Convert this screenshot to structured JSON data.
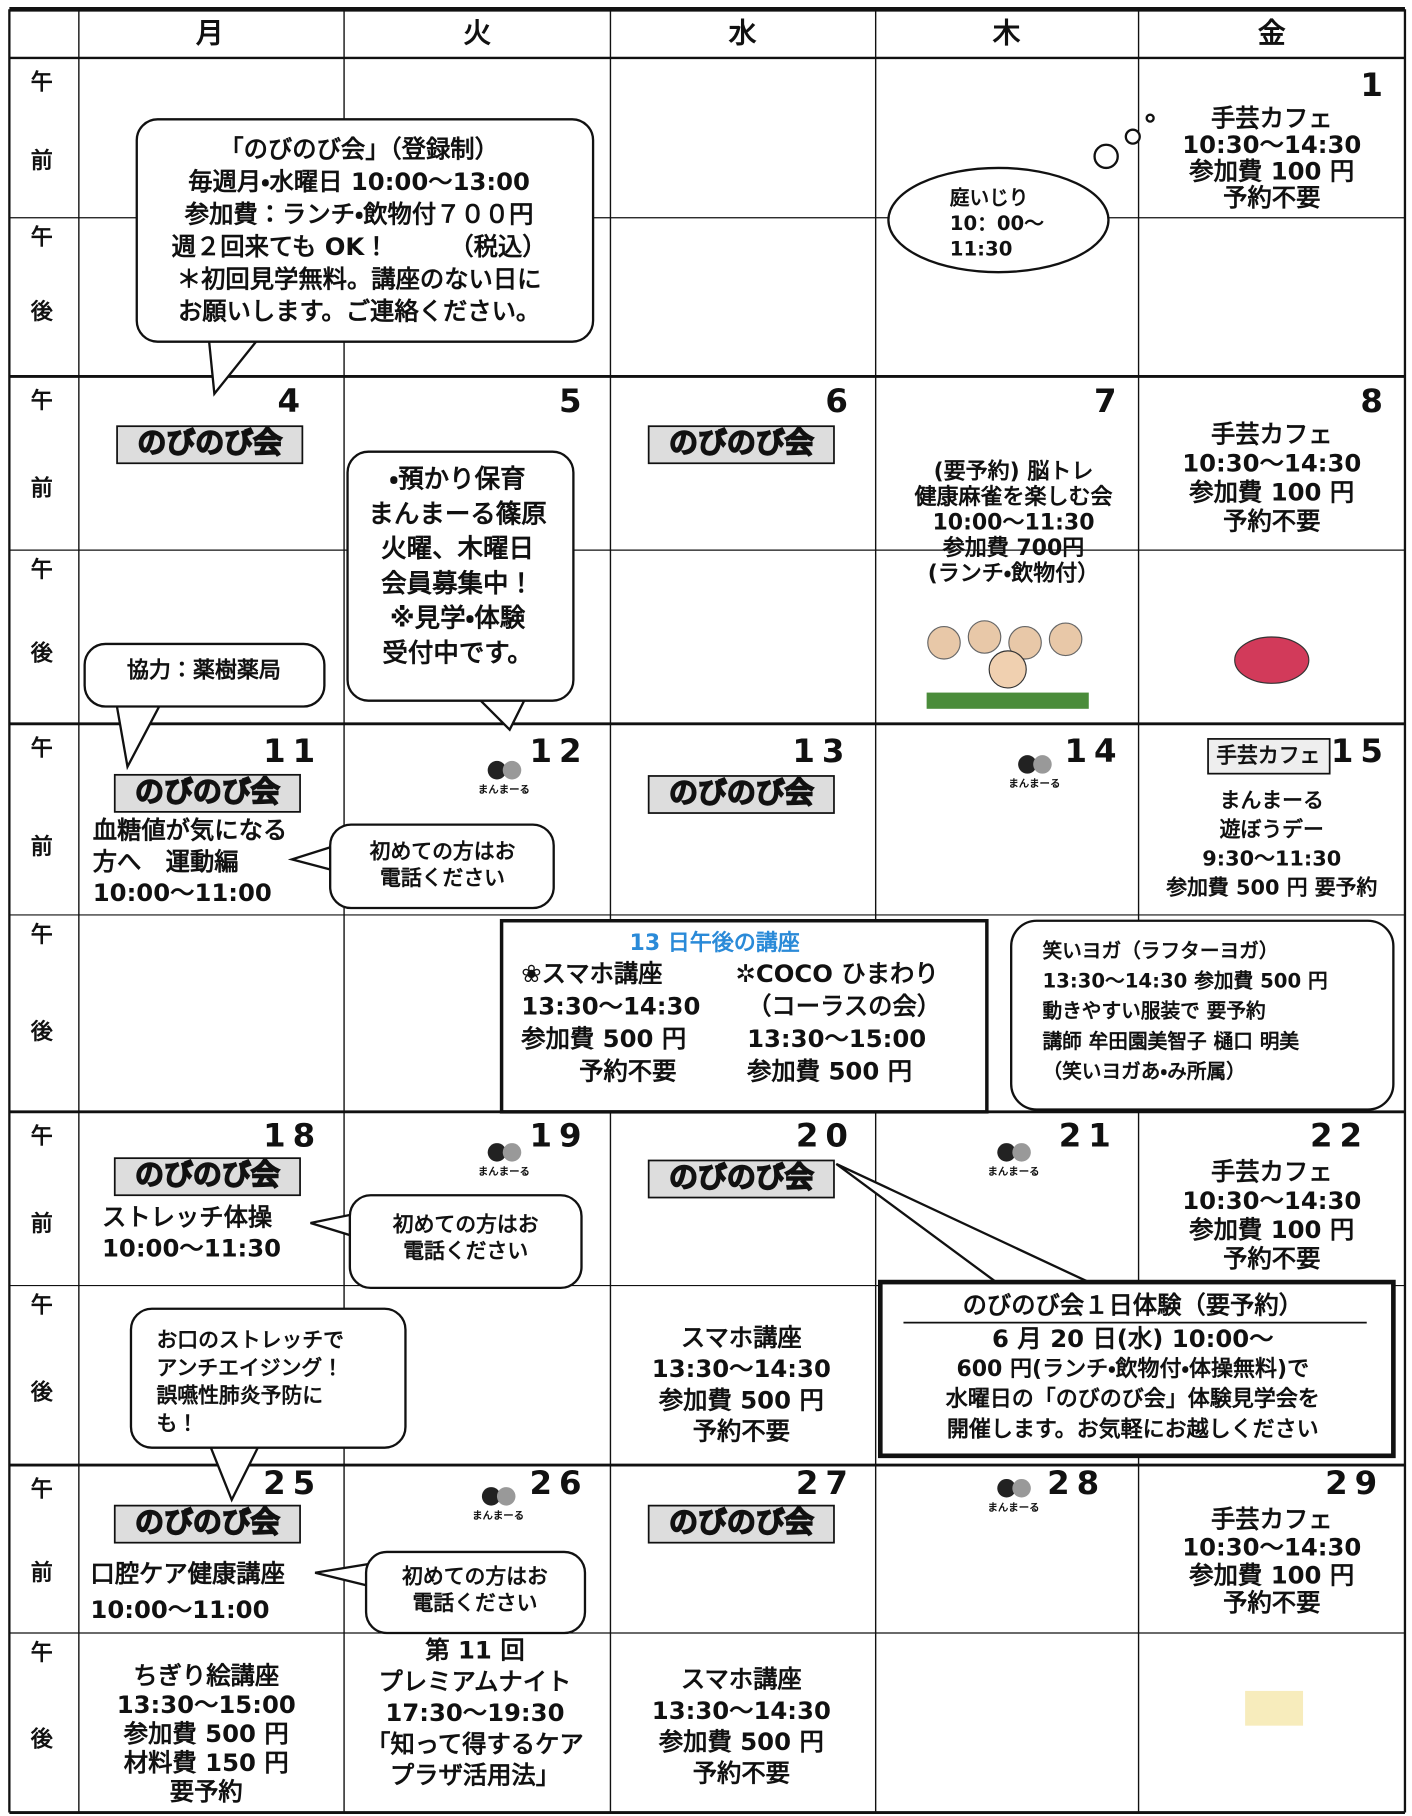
{
  "days": [
    "月",
    "火",
    "水",
    "木",
    "金"
  ],
  "am_label": [
    "午",
    "前"
  ],
  "pm_label": [
    "午",
    "後"
  ],
  "dates": [
    "1",
    "4",
    "5",
    "6",
    "7",
    "8",
    "11",
    "12",
    "13",
    "14",
    "15",
    "18",
    "19",
    "20",
    "21",
    "22",
    "25",
    "26",
    "27",
    "28",
    "29"
  ],
  "badge": "のびのび会",
  "manmaru": "まんまーる",
  "cafe_tag": "手芸カフェ",
  "texts": [
    {
      "lines": [
        "「のびのび会」（登録制）",
        "毎週月・水曜日 10:00～13:00",
        "参加費：ランチ・飲物付７００円",
        "週２回来ても OK！　　　（税込）",
        "＊初回見学無料。講座のない日に",
        "お願いします。ご連絡ください。"
      ]
    },
    {
      "lines": [
        "庭いじり",
        "10：00～",
        "11:30"
      ]
    },
    {
      "lines": [
        "手芸カフェ",
        "10:30～14:30",
        "参加費 100 円",
        "予約不要"
      ]
    },
    {
      "lines": [
        "・預かり保育",
        "まんまーる篠原",
        "火曜、木曜日",
        "会員募集中！",
        "※見学・体験",
        "受付中です。"
      ]
    },
    {
      "lines": [
        "協力：薬樹薬局"
      ]
    },
    {
      "lines": [
        "(要予約) 脳トレ",
        "健康麻雀を楽しむ会",
        "10:00～11:30",
        "参加費 700円",
        "(ランチ・飲物付）"
      ]
    },
    {
      "lines": [
        "手芸カフェ",
        "10:30～14:30",
        "参加費 100 円",
        "予約不要"
      ]
    },
    {
      "lines": [
        "血糖値が気になる",
        "方へ　運動編",
        "10:00～11:00"
      ]
    },
    {
      "lines": [
        "初めての方はお",
        "電話ください"
      ]
    },
    {
      "lines": [
        "まんまーる",
        "遊ぼうデー",
        "9:30～11:30",
        "参加費 500 円 要予約"
      ]
    },
    {
      "lines": [
        "笑いヨガ（ラフターヨガ）",
        "13:30～14:30 参加費 500 円",
        "動きやすい服装で 要予約",
        "講師 牟田園美智子 樋口 明美",
        "（笑いヨガあ・み所属）"
      ]
    },
    {
      "lines": [
        "ストレッチ体操",
        "10:00～11:30"
      ]
    },
    {
      "lines": [
        "初めての方はお",
        "電話ください"
      ]
    },
    {
      "lines": [
        "手芸カフェ",
        "10:30～14:30",
        "参加費 100 円",
        "予約不要"
      ]
    },
    {
      "lines": [
        "お口のストレッチで",
        "アンチエイジング！",
        "誤嚥性肺炎予防に",
        "も！"
      ]
    },
    {
      "lines": [
        "スマホ講座",
        "13:30～14:30",
        "参加費 500 円",
        "予約不要"
      ]
    },
    {
      "lines": [
        "口腔ケア健康講座",
        "10:00～11:00"
      ]
    },
    {
      "lines": [
        "初めての方はお",
        "電話ください"
      ]
    },
    {
      "lines": [
        "手芸カフェ",
        "10:30～14:30",
        "参加費 100 円",
        "予約不要"
      ]
    },
    {
      "lines": [
        "ちぎり絵講座",
        "13:30～15:00",
        "参加費 500 円",
        "材料費 150 円",
        "要予約"
      ]
    },
    {
      "lines": [
        "第 11 回",
        "プレミアムナイト",
        "17:30～19:30",
        "「知って得するケア",
        "プラザ活用法」"
      ]
    },
    {
      "lines": [
        "スマホ講座",
        "13:30～14:30",
        "参加費 500 円",
        "予約不要"
      ]
    }
  ],
  "box_13": {
    "title": "13 日午後の講座",
    "left": [
      "❀スマホ講座",
      "13:30～14:30",
      "参加費 500 円",
      "予約不要"
    ],
    "right": [
      "✲COCO ひまわり",
      "（コーラスの会）",
      "13:30～15:00",
      "参加費 500 円"
    ]
  },
  "trial_box": {
    "title": "のびのび会１日体験（要予約）",
    "lines": [
      "6 月 20 日(水) 10:00～",
      "600 円(ランチ・飲物付・体操無料)で",
      "水曜日の「のびのび会」体験見学会を",
      "開催します。お気軽にお越しください"
    ]
  }
}
